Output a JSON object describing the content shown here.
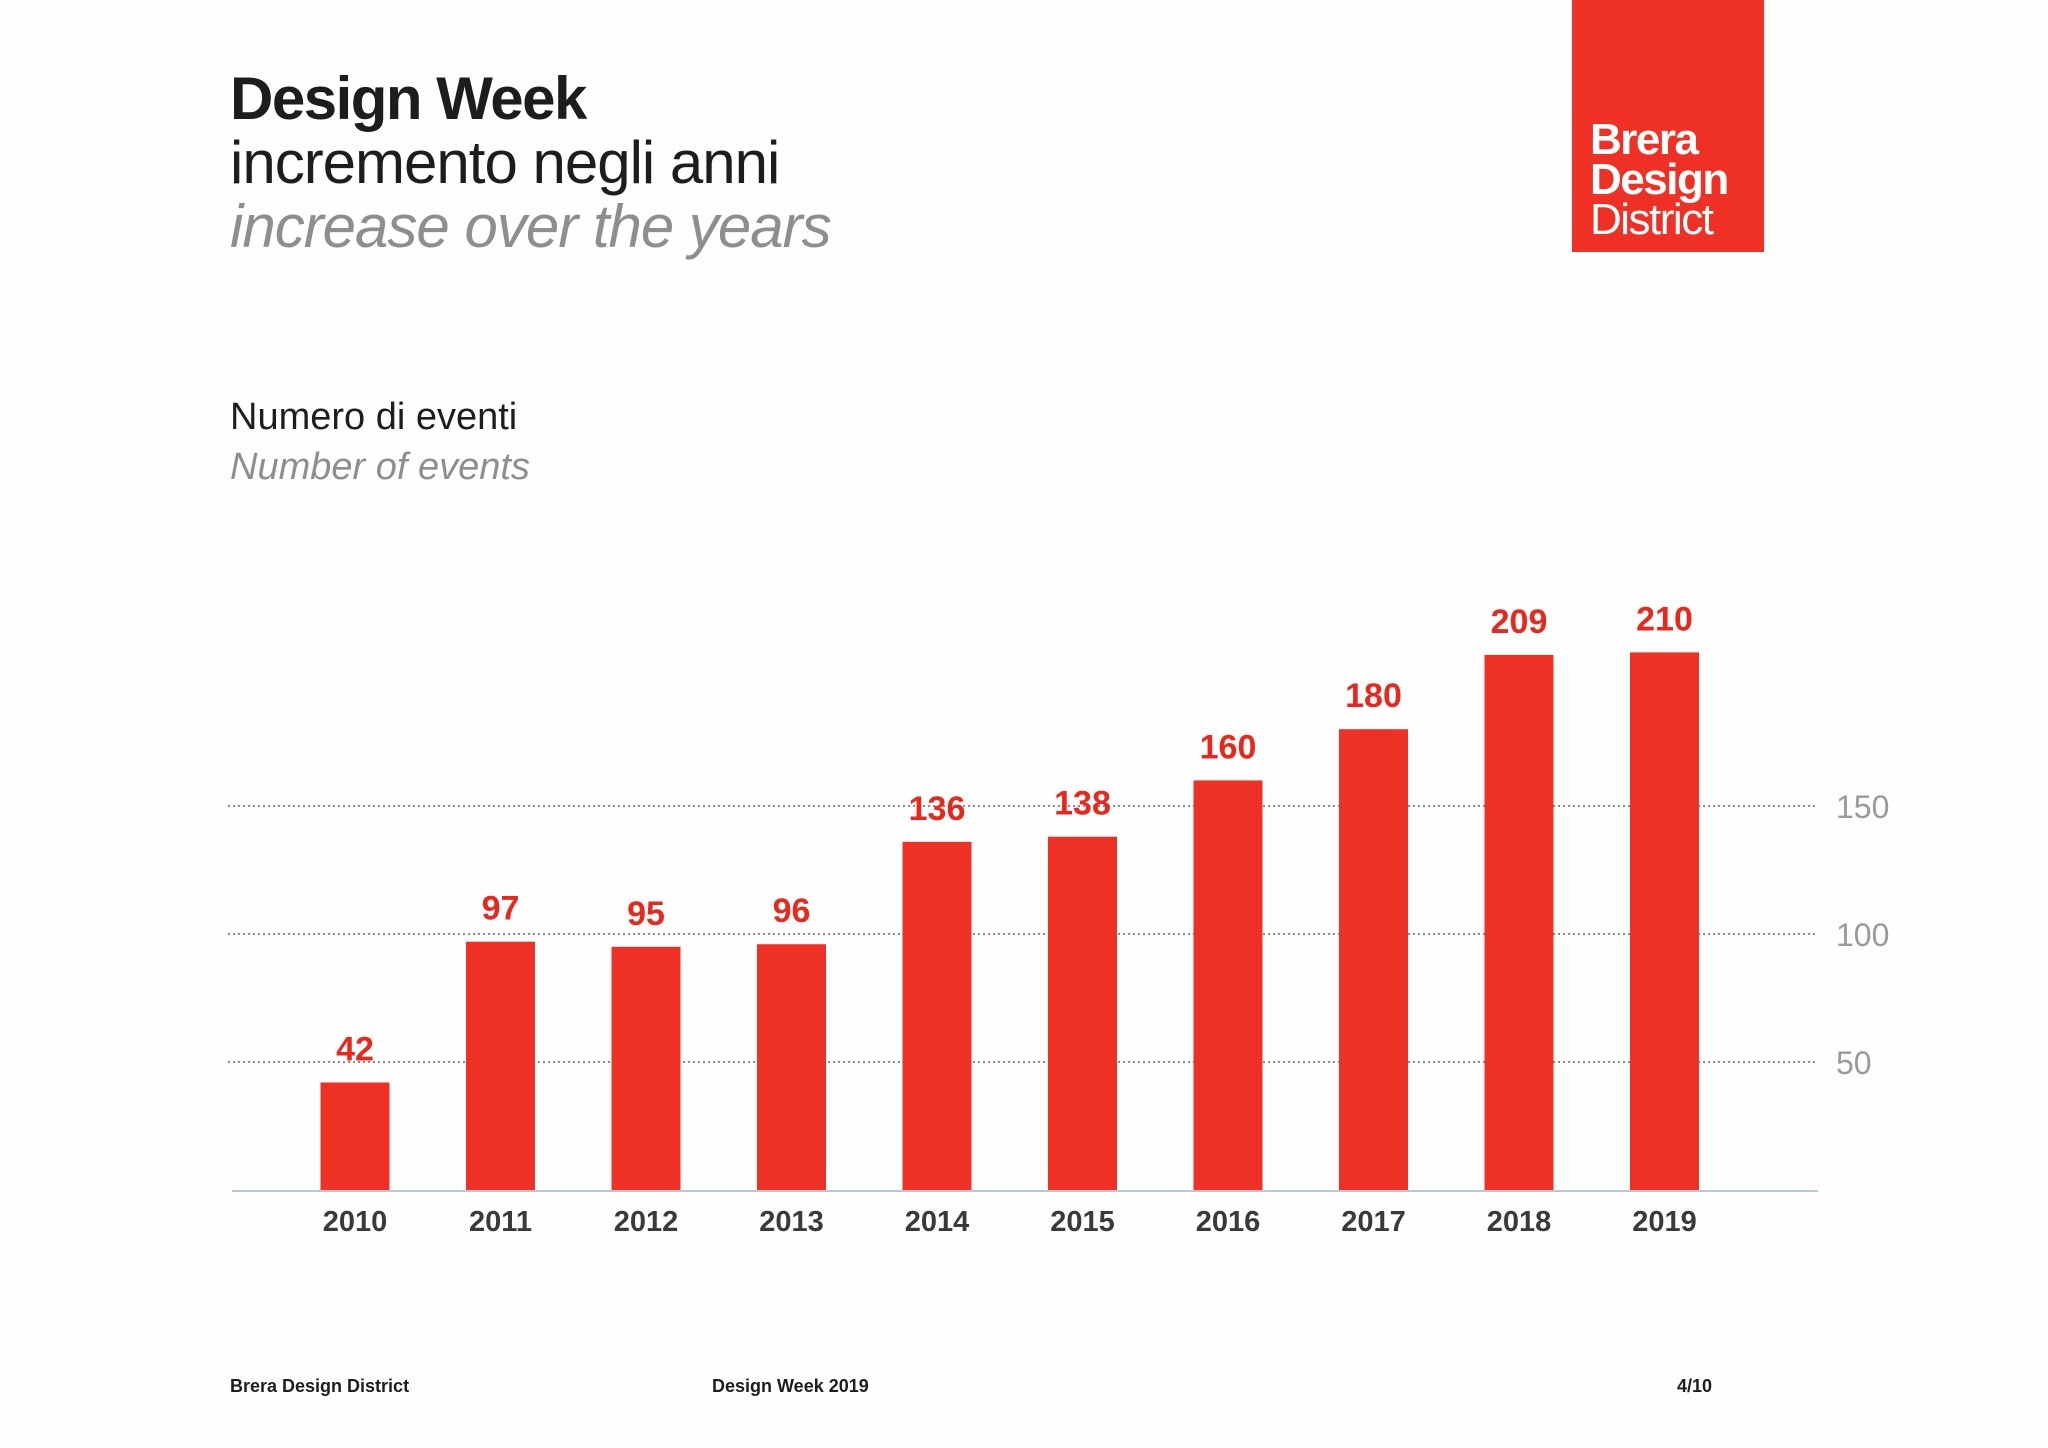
{
  "header": {
    "title": "Design Week",
    "subtitle_it": "incremento negli anni",
    "subtitle_en": "increase over the years"
  },
  "logo": {
    "line1": "Brera",
    "line2": "Design",
    "line3": "District",
    "background": "#ee3124"
  },
  "chart_data": {
    "type": "bar",
    "ylabel": "Numero di eventi",
    "ylabel_en": "Number of events",
    "categories": [
      "2010",
      "2011",
      "2012",
      "2013",
      "2014",
      "2015",
      "2016",
      "2017",
      "2018",
      "2019"
    ],
    "values": [
      42,
      97,
      95,
      96,
      136,
      138,
      160,
      180,
      209,
      210
    ],
    "y_ticks": [
      50,
      100,
      150
    ],
    "ylim": [
      0,
      210
    ],
    "grid": "dotted horizontal",
    "y_axis_side": "right",
    "bar_color": "#ee3124",
    "label_color": "#e8281c"
  },
  "footer": {
    "left": "Brera Design District",
    "center": "Design Week 2019",
    "page": "4/10"
  }
}
